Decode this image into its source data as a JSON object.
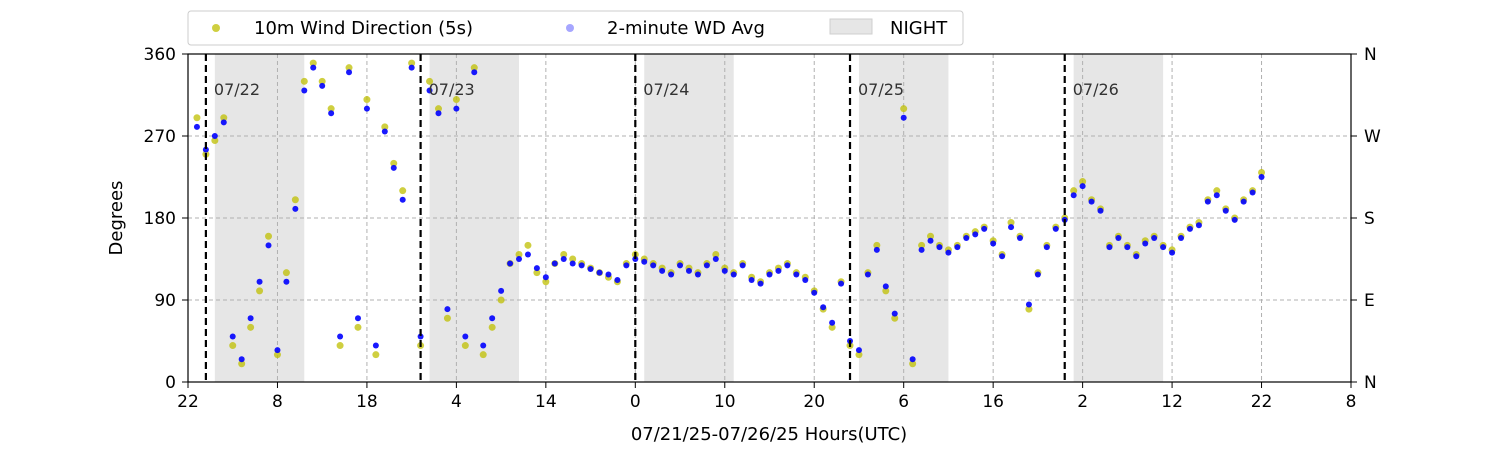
{
  "chart_data": {
    "type": "scatter",
    "xlabel": "07/21/25-07/26/25  Hours(UTC)",
    "ylabel": "Degrees",
    "x_unit": "hours (UTC)",
    "xlim": [
      -2,
      128
    ],
    "ylim": [
      0,
      360
    ],
    "x_ticks": [
      {
        "value": -2,
        "label": "22"
      },
      {
        "value": 8,
        "label": "8"
      },
      {
        "value": 18,
        "label": "18"
      },
      {
        "value": 28,
        "label": "4"
      },
      {
        "value": 38,
        "label": "14"
      },
      {
        "value": 48,
        "label": "0"
      },
      {
        "value": 58,
        "label": "10"
      },
      {
        "value": 68,
        "label": "20"
      },
      {
        "value": 78,
        "label": "6"
      },
      {
        "value": 88,
        "label": "16"
      },
      {
        "value": 98,
        "label": "2"
      },
      {
        "value": 108,
        "label": "12"
      },
      {
        "value": 118,
        "label": "22"
      },
      {
        "value": 128,
        "label": "8"
      }
    ],
    "y_ticks": [
      0,
      90,
      180,
      270,
      360
    ],
    "y2_ticks": [
      {
        "value": 0,
        "label": "N"
      },
      {
        "value": 90,
        "label": "E"
      },
      {
        "value": 180,
        "label": "S"
      },
      {
        "value": 270,
        "label": "W"
      },
      {
        "value": 360,
        "label": "N"
      }
    ],
    "grid": true,
    "legend_position": "top",
    "legend": [
      {
        "label": "10m Wind Direction (5s)",
        "kind": "dot",
        "color": "#bfbf00"
      },
      {
        "label": "2-minute WD Avg",
        "kind": "dot",
        "color": "#0000ff"
      },
      {
        "label": "NIGHT",
        "kind": "patch",
        "color": "#e6e6e6"
      }
    ],
    "day_markers": [
      {
        "x": 0,
        "label": "07/22"
      },
      {
        "x": 24,
        "label": "07/23"
      },
      {
        "x": 48,
        "label": "07/24"
      },
      {
        "x": 72,
        "label": "07/25"
      },
      {
        "x": 96,
        "label": "07/26"
      }
    ],
    "night_spans": [
      [
        1,
        11
      ],
      [
        25,
        35
      ],
      [
        49,
        59
      ],
      [
        73,
        83
      ],
      [
        97,
        107
      ]
    ],
    "series": [
      {
        "name": "10m Wind Direction (5s)",
        "color": "#bfbf00",
        "x": [
          -1,
          0,
          1,
          2,
          3,
          4,
          5,
          6,
          7,
          8,
          9,
          10,
          11,
          12,
          13,
          14,
          15,
          16,
          17,
          18,
          19,
          20,
          21,
          22,
          23,
          24,
          25,
          26,
          27,
          28,
          29,
          30,
          31,
          32,
          33,
          34,
          35,
          36,
          37,
          38,
          39,
          40,
          41,
          42,
          43,
          44,
          45,
          46,
          47,
          48,
          49,
          50,
          51,
          52,
          53,
          54,
          55,
          56,
          57,
          58,
          59,
          60,
          61,
          62,
          63,
          64,
          65,
          66,
          67,
          68,
          69,
          70,
          71,
          72,
          73,
          74,
          75,
          76,
          77,
          78,
          79,
          80,
          81,
          82,
          83,
          84,
          85,
          86,
          87,
          88,
          89,
          90,
          91,
          92,
          93,
          94,
          95,
          96,
          97,
          98,
          99,
          100,
          101,
          102,
          103,
          104,
          105,
          106,
          107,
          108,
          109,
          110,
          111,
          112,
          113,
          114,
          115,
          116,
          117,
          118
        ],
        "y": [
          290,
          250,
          265,
          290,
          40,
          20,
          60,
          100,
          160,
          30,
          120,
          200,
          330,
          350,
          330,
          300,
          40,
          345,
          60,
          310,
          30,
          280,
          240,
          210,
          350,
          40,
          330,
          300,
          70,
          310,
          40,
          345,
          30,
          60,
          90,
          130,
          140,
          150,
          120,
          110,
          130,
          140,
          135,
          130,
          125,
          120,
          115,
          110,
          130,
          140,
          135,
          130,
          125,
          120,
          130,
          125,
          120,
          130,
          140,
          125,
          120,
          130,
          115,
          110,
          120,
          125,
          130,
          120,
          115,
          100,
          80,
          60,
          110,
          40,
          30,
          120,
          150,
          100,
          70,
          300,
          20,
          150,
          160,
          150,
          145,
          150,
          160,
          165,
          170,
          155,
          140,
          175,
          160,
          80,
          120,
          150,
          170,
          180,
          210,
          220,
          200,
          190,
          150,
          160,
          150,
          140,
          155,
          160,
          150,
          145,
          160,
          170,
          175,
          200,
          210,
          190,
          180,
          200,
          210,
          230
        ]
      },
      {
        "name": "2-minute WD Avg",
        "color": "#0000ff",
        "x": [
          -1,
          0,
          1,
          2,
          3,
          4,
          5,
          6,
          7,
          8,
          9,
          10,
          11,
          12,
          13,
          14,
          15,
          16,
          17,
          18,
          19,
          20,
          21,
          22,
          23,
          24,
          25,
          26,
          27,
          28,
          29,
          30,
          31,
          32,
          33,
          34,
          35,
          36,
          37,
          38,
          39,
          40,
          41,
          42,
          43,
          44,
          45,
          46,
          47,
          48,
          49,
          50,
          51,
          52,
          53,
          54,
          55,
          56,
          57,
          58,
          59,
          60,
          61,
          62,
          63,
          64,
          65,
          66,
          67,
          68,
          69,
          70,
          71,
          72,
          73,
          74,
          75,
          76,
          77,
          78,
          79,
          80,
          81,
          82,
          83,
          84,
          85,
          86,
          87,
          88,
          89,
          90,
          91,
          92,
          93,
          94,
          95,
          96,
          97,
          98,
          99,
          100,
          101,
          102,
          103,
          104,
          105,
          106,
          107,
          108,
          109,
          110,
          111,
          112,
          113,
          114,
          115,
          116,
          117,
          118
        ],
        "y": [
          280,
          255,
          270,
          285,
          50,
          25,
          70,
          110,
          150,
          35,
          110,
          190,
          320,
          345,
          325,
          295,
          50,
          340,
          70,
          300,
          40,
          275,
          235,
          200,
          345,
          50,
          320,
          295,
          80,
          300,
          50,
          340,
          40,
          70,
          100,
          130,
          135,
          140,
          125,
          115,
          130,
          135,
          130,
          128,
          124,
          120,
          118,
          112,
          128,
          135,
          132,
          128,
          122,
          118,
          128,
          122,
          118,
          128,
          135,
          122,
          118,
          128,
          112,
          108,
          118,
          122,
          128,
          118,
          112,
          98,
          82,
          65,
          108,
          45,
          35,
          118,
          145,
          105,
          75,
          290,
          25,
          145,
          155,
          148,
          142,
          148,
          158,
          162,
          168,
          152,
          138,
          170,
          158,
          85,
          118,
          148,
          168,
          178,
          205,
          215,
          198,
          188,
          148,
          158,
          148,
          138,
          152,
          158,
          148,
          142,
          158,
          168,
          172,
          198,
          205,
          188,
          178,
          198,
          208,
          225
        ]
      }
    ]
  }
}
